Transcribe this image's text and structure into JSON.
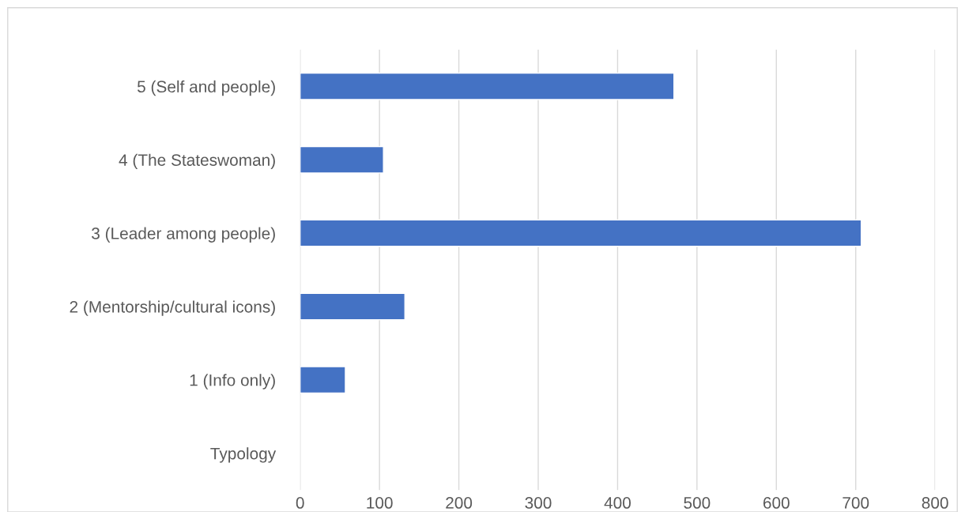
{
  "chart_data": {
    "type": "bar",
    "orientation": "horizontal",
    "categories": [
      "5 (Self and people)",
      "4 (The Stateswoman)",
      "3 (Leader among people)",
      "2 (Mentorship/cultural icons)",
      "1 (Info only)",
      "Typology"
    ],
    "values": [
      471,
      105,
      707,
      132,
      57,
      null
    ],
    "color": "#4472c4",
    "xlim": [
      0,
      800
    ],
    "xticks": [
      0,
      100,
      200,
      300,
      400,
      500,
      600,
      700,
      800
    ],
    "grid": "x"
  }
}
